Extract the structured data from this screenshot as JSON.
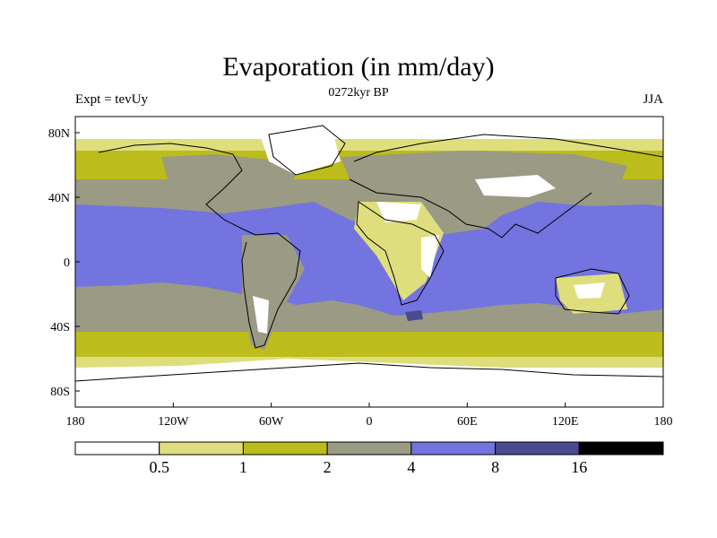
{
  "title": "Evaporation (in mm/day)",
  "subtitle": "0272kyr BP",
  "left_label": "Expt = tevUy",
  "right_label": "JJA",
  "colors": {
    "lt_0_5": "#ffffff",
    "0_5_to_1": "#dede7c",
    "1_to_2": "#bcbc1c",
    "2_to_4": "#9a9a85",
    "4_to_8": "#7374df",
    "8_to_16": "#4a4a8e",
    "gt_16": "#000000"
  },
  "chart_data": {
    "type": "heatmap",
    "variable": "Evaporation",
    "units": "mm/day",
    "season": "JJA",
    "x_ticks": [
      "180",
      "120W",
      "60W",
      "0",
      "60E",
      "120E",
      "180"
    ],
    "y_ticks": [
      "80N",
      "40N",
      "0",
      "40S",
      "80S"
    ],
    "xlim": [
      -180,
      180
    ],
    "ylim": [
      -90,
      90
    ],
    "colorbar": {
      "levels": [
        "0.5",
        "1",
        "2",
        "4",
        "8",
        "16"
      ],
      "colors": [
        "#ffffff",
        "#dede7c",
        "#bcbc1c",
        "#9a9a85",
        "#7374df",
        "#4a4a8e",
        "#000000"
      ]
    }
  }
}
